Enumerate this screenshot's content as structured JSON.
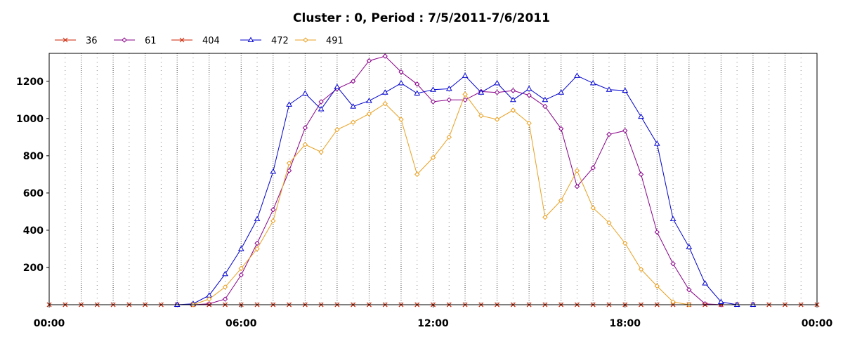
{
  "chart_data": {
    "type": "line",
    "title": "Cluster : 0, Period : 7/5/2011-7/6/2011",
    "xlabel": "",
    "ylabel": "",
    "x_tick_labels": [
      "00:00",
      "06:00",
      "12:00",
      "18:00",
      "00:00"
    ],
    "y_ticks": [
      200,
      400,
      600,
      800,
      1000,
      1200
    ],
    "xlim_hours": [
      0,
      24
    ],
    "ylim": [
      0,
      1350
    ],
    "grid": "vertical dotted lines every 30 minutes, darker dotted lines every hour",
    "legend_position": "top-left",
    "series": [
      {
        "name": "36",
        "color": "#cc2200",
        "marker": "x",
        "x_hours": [
          0,
          0.5,
          1,
          1.5,
          2,
          2.5,
          3,
          3.5,
          4,
          4.5,
          5,
          5.5,
          6,
          6.5,
          7,
          7.5,
          8,
          8.5,
          9,
          9.5,
          10,
          10.5,
          11,
          11.5,
          12,
          12.5,
          13,
          13.5,
          14,
          14.5,
          15,
          15.5,
          16,
          16.5,
          17,
          17.5,
          18,
          18.5,
          19,
          19.5,
          20,
          20.5,
          21,
          21.5,
          22,
          22.5,
          23,
          23.5,
          24
        ],
        "values": [
          0,
          0,
          0,
          0,
          0,
          0,
          0,
          0,
          0,
          0,
          0,
          0,
          0,
          0,
          0,
          0,
          0,
          0,
          0,
          0,
          0,
          0,
          0,
          0,
          0,
          0,
          0,
          0,
          0,
          0,
          0,
          0,
          0,
          0,
          0,
          0,
          0,
          0,
          0,
          0,
          0,
          0,
          0,
          0,
          0,
          0,
          0,
          0,
          0
        ]
      },
      {
        "name": "61",
        "color": "#880088",
        "marker": "diamond",
        "x_hours": [
          4,
          4.5,
          5,
          5.5,
          6,
          6.5,
          7,
          7.5,
          8,
          8.5,
          9,
          9.5,
          10,
          10.5,
          11,
          11.5,
          12,
          12.5,
          13,
          13.5,
          14,
          14.5,
          15,
          15.5,
          16,
          16.5,
          17,
          17.5,
          18,
          18.5,
          19,
          19.5,
          20,
          20.5,
          21
        ],
        "values": [
          0,
          0,
          5,
          30,
          160,
          330,
          510,
          720,
          950,
          1090,
          1160,
          1200,
          1310,
          1335,
          1250,
          1185,
          1090,
          1100,
          1100,
          1145,
          1140,
          1150,
          1125,
          1065,
          945,
          635,
          735,
          915,
          935,
          700,
          390,
          220,
          80,
          5,
          0
        ]
      },
      {
        "name": "404",
        "color": "#cc2200",
        "marker": "x",
        "x_hours": [
          0,
          0.5,
          1,
          1.5,
          2,
          2.5,
          3,
          3.5,
          4,
          4.5,
          5,
          5.5,
          6,
          6.5,
          7,
          7.5,
          8,
          8.5,
          9,
          9.5,
          10,
          10.5,
          11,
          11.5,
          12,
          12.5,
          13,
          13.5,
          14,
          14.5,
          15,
          15.5,
          16,
          16.5,
          17,
          17.5,
          18,
          18.5,
          19,
          19.5,
          20,
          20.5,
          21,
          21.5,
          22,
          22.5,
          23,
          23.5,
          24
        ],
        "values": [
          0,
          0,
          0,
          0,
          0,
          0,
          0,
          0,
          0,
          0,
          0,
          0,
          0,
          0,
          0,
          0,
          0,
          0,
          0,
          0,
          0,
          0,
          0,
          0,
          0,
          0,
          0,
          0,
          0,
          0,
          0,
          0,
          0,
          0,
          0,
          0,
          0,
          0,
          0,
          0,
          0,
          0,
          0,
          0,
          0,
          0,
          0,
          0,
          0
        ]
      },
      {
        "name": "472",
        "color": "#0000cc",
        "marker": "triangle",
        "x_hours": [
          4,
          4.5,
          5,
          5.5,
          6,
          6.5,
          7,
          7.5,
          8,
          8.5,
          9,
          9.5,
          10,
          10.5,
          11,
          11.5,
          12,
          12.5,
          13,
          13.5,
          14,
          14.5,
          15,
          15.5,
          16,
          16.5,
          17,
          17.5,
          18,
          18.5,
          19,
          19.5,
          20,
          20.5,
          21,
          21.5,
          22
        ],
        "values": [
          0,
          5,
          50,
          165,
          300,
          460,
          715,
          1075,
          1135,
          1050,
          1170,
          1065,
          1095,
          1140,
          1190,
          1135,
          1155,
          1160,
          1230,
          1140,
          1190,
          1100,
          1160,
          1100,
          1140,
          1230,
          1190,
          1155,
          1150,
          1010,
          865,
          460,
          310,
          115,
          15,
          0,
          0
        ]
      },
      {
        "name": "491",
        "color": "#e8a020",
        "marker": "diamond",
        "x_hours": [
          4.5,
          5,
          5.5,
          6,
          6.5,
          7,
          7.5,
          8,
          8.5,
          9,
          9.5,
          10,
          10.5,
          11,
          11.5,
          12,
          12.5,
          13,
          13.5,
          14,
          14.5,
          15,
          15.5,
          16,
          16.5,
          17,
          17.5,
          18,
          18.5,
          19,
          19.5,
          20
        ],
        "values": [
          0,
          30,
          95,
          195,
          300,
          450,
          760,
          860,
          820,
          940,
          980,
          1025,
          1080,
          995,
          700,
          790,
          900,
          1130,
          1015,
          995,
          1045,
          975,
          470,
          560,
          720,
          520,
          440,
          330,
          190,
          100,
          15,
          0
        ]
      }
    ]
  }
}
